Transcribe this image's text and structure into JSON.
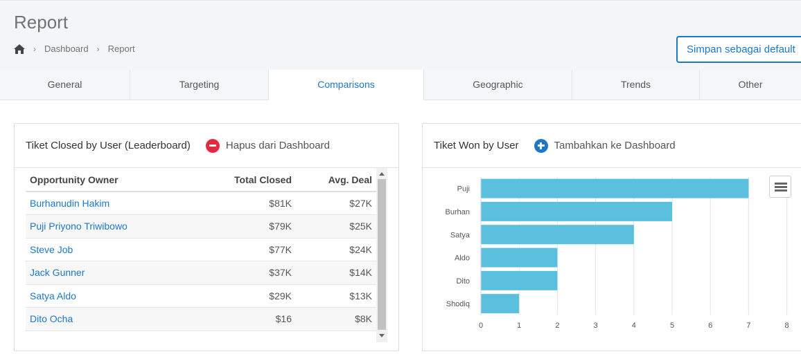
{
  "page": {
    "title": "Report",
    "breadcrumb": [
      "Dashboard",
      "Report"
    ],
    "save_button": "Simpan sebagai default"
  },
  "tabs": [
    "General",
    "Targeting",
    "Comparisons",
    "Geographic",
    "Trends",
    "Other"
  ],
  "active_tab": "Comparisons",
  "leaderboard": {
    "title": "Tiket Closed by User (Leaderboard)",
    "action": "Hapus dari Dashboard",
    "columns": [
      "Opportunity Owner",
      "Total Closed",
      "Avg. Deal"
    ],
    "rows": [
      [
        "Burhanudin Hakim",
        "$81K",
        "$27K"
      ],
      [
        "Puji Priyono Triwibowo",
        "$79K",
        "$25K"
      ],
      [
        "Steve Job",
        "$77K",
        "$24K"
      ],
      [
        "Jack Gunner",
        "$37K",
        "$14K"
      ],
      [
        "Satya Aldo",
        "$29K",
        "$13K"
      ],
      [
        "Dito Ocha",
        "$16",
        "$8K"
      ]
    ]
  },
  "won_panel": {
    "title": "Tiket Won by User",
    "action": "Tambahkan ke Dashboard"
  },
  "colors": {
    "accent": "#1c78c7",
    "bar": "#5bc0de",
    "remove": "#e5283d"
  },
  "chart_data": {
    "type": "bar",
    "orientation": "horizontal",
    "categories": [
      "Puji",
      "Burhan",
      "Satya",
      "Aldo",
      "Dito",
      "Shodiq"
    ],
    "values": [
      7,
      5,
      4,
      2,
      2,
      1
    ],
    "xticks": [
      "0",
      "1",
      "2",
      "3",
      "4",
      "5",
      "6",
      "7",
      "8"
    ],
    "xlim": [
      0,
      8
    ],
    "grid": true
  }
}
